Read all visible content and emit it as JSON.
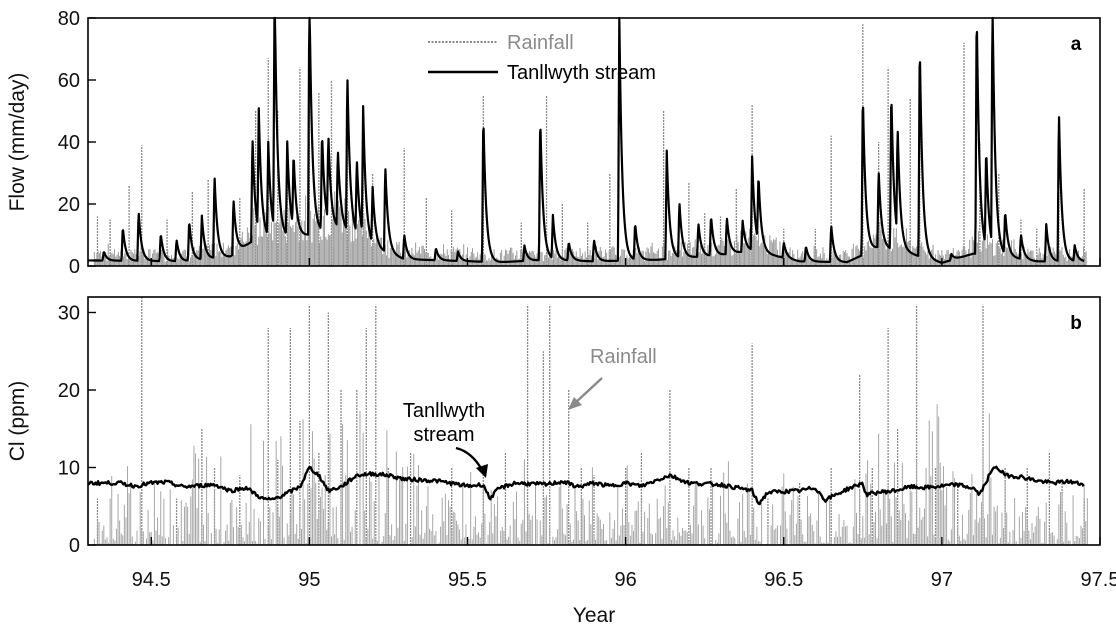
{
  "chart_data": [
    {
      "panel": "a",
      "type": "line",
      "xlabel": "",
      "ylabel": "Flow (mm/day)",
      "xlim": [
        94.3,
        97.5
      ],
      "ylim": [
        0,
        80
      ],
      "yticks": [
        "0",
        "20",
        "40",
        "60",
        "80"
      ],
      "legend_position": "top-center",
      "legend": [
        {
          "label": "Rainfall",
          "color": "#8a8a8a"
        },
        {
          "label": "Tanllwyth stream",
          "color": "#000000"
        }
      ],
      "series": [
        {
          "name": "Rainfall",
          "style": "vertical bars",
          "color": "#8a8a8a",
          "peaks": [
            [
              94.33,
              16
            ],
            [
              94.37,
              15
            ],
            [
              94.43,
              26
            ],
            [
              94.47,
              39
            ],
            [
              94.55,
              15
            ],
            [
              94.63,
              24
            ],
            [
              94.68,
              28
            ],
            [
              94.78,
              22
            ],
            [
              94.83,
              50
            ],
            [
              94.87,
              67
            ],
            [
              94.9,
              50
            ],
            [
              94.93,
              32
            ],
            [
              94.97,
              64
            ],
            [
              95.0,
              68
            ],
            [
              95.03,
              56
            ],
            [
              95.07,
              60
            ],
            [
              95.12,
              50
            ],
            [
              95.17,
              35
            ],
            [
              95.2,
              30
            ],
            [
              95.3,
              38
            ],
            [
              95.37,
              22
            ],
            [
              95.45,
              18
            ],
            [
              95.55,
              55
            ],
            [
              95.67,
              14
            ],
            [
              95.75,
              55
            ],
            [
              95.8,
              20
            ],
            [
              95.88,
              14
            ],
            [
              95.95,
              30
            ],
            [
              96.12,
              50
            ],
            [
              96.2,
              27
            ],
            [
              96.25,
              17
            ],
            [
              96.3,
              16
            ],
            [
              96.35,
              25
            ],
            [
              96.4,
              52
            ],
            [
              96.5,
              12
            ],
            [
              96.6,
              12
            ],
            [
              96.65,
              42
            ],
            [
              96.75,
              78
            ],
            [
              96.8,
              40
            ],
            [
              96.83,
              64
            ],
            [
              96.9,
              54
            ],
            [
              96.93,
              57
            ],
            [
              97.07,
              72
            ],
            [
              97.12,
              40
            ],
            [
              97.18,
              30
            ],
            [
              97.25,
              15
            ],
            [
              97.3,
              12
            ],
            [
              97.37,
              34
            ],
            [
              97.45,
              25
            ]
          ]
        },
        {
          "name": "Tanllwyth stream",
          "style": "line",
          "color": "#000000",
          "baseflow": [
            [
              94.3,
              1.8
            ],
            [
              94.6,
              1.5
            ],
            [
              94.75,
              3
            ],
            [
              94.82,
              8
            ],
            [
              95.0,
              10
            ],
            [
              95.1,
              12
            ],
            [
              95.2,
              6
            ],
            [
              95.3,
              2.2
            ],
            [
              95.6,
              1.2
            ],
            [
              95.75,
              2
            ],
            [
              95.9,
              1.5
            ],
            [
              96.1,
              2
            ],
            [
              96.3,
              3.5
            ],
            [
              96.4,
              5
            ],
            [
              96.55,
              1.5
            ],
            [
              96.7,
              1.2
            ],
            [
              96.8,
              6
            ],
            [
              96.9,
              4
            ],
            [
              97.0,
              1
            ],
            [
              97.1,
              4
            ],
            [
              97.2,
              3
            ],
            [
              97.3,
              1.5
            ],
            [
              97.45,
              1.5
            ]
          ],
          "peaks": [
            [
              94.35,
              3
            ],
            [
              94.41,
              11
            ],
            [
              94.46,
              16
            ],
            [
              94.53,
              9
            ],
            [
              94.58,
              7
            ],
            [
              94.62,
              13
            ],
            [
              94.66,
              14
            ],
            [
              94.7,
              27
            ],
            [
              94.76,
              18
            ],
            [
              94.82,
              34
            ],
            [
              94.84,
              39
            ],
            [
              94.87,
              30
            ],
            [
              94.89,
              80
            ],
            [
              94.93,
              30
            ],
            [
              94.95,
              24
            ],
            [
              95.0,
              80
            ],
            [
              95.04,
              32
            ],
            [
              95.06,
              28
            ],
            [
              95.09,
              25
            ],
            [
              95.12,
              51
            ],
            [
              95.15,
              24
            ],
            [
              95.17,
              41
            ],
            [
              95.2,
              18
            ],
            [
              95.24,
              28
            ],
            [
              95.3,
              8
            ],
            [
              95.4,
              4
            ],
            [
              95.47,
              3
            ],
            [
              95.55,
              48
            ],
            [
              95.68,
              5
            ],
            [
              95.73,
              47
            ],
            [
              95.77,
              14
            ],
            [
              95.82,
              6
            ],
            [
              95.9,
              7
            ],
            [
              95.98,
              80
            ],
            [
              96.03,
              12
            ],
            [
              96.13,
              35
            ],
            [
              96.17,
              18
            ],
            [
              96.23,
              11
            ],
            [
              96.27,
              13
            ],
            [
              96.32,
              12
            ],
            [
              96.37,
              10
            ],
            [
              96.4,
              30
            ],
            [
              96.42,
              22
            ],
            [
              96.5,
              5
            ],
            [
              96.57,
              5
            ],
            [
              96.65,
              12
            ],
            [
              96.75,
              53
            ],
            [
              96.8,
              25
            ],
            [
              96.84,
              52
            ],
            [
              96.86,
              35
            ],
            [
              96.93,
              70
            ],
            [
              97.03,
              2
            ],
            [
              97.11,
              80
            ],
            [
              97.14,
              32
            ],
            [
              97.16,
              80
            ],
            [
              97.2,
              14
            ],
            [
              97.25,
              8
            ],
            [
              97.33,
              12
            ],
            [
              97.37,
              49
            ],
            [
              97.42,
              5
            ]
          ]
        }
      ]
    },
    {
      "panel": "b",
      "type": "line",
      "xlabel": "Year",
      "ylabel": "Cl (ppm)",
      "xlim": [
        94.3,
        97.5
      ],
      "ylim": [
        0,
        32
      ],
      "xticks": [
        "94.5",
        "95",
        "95.5",
        "96",
        "96.5",
        "97",
        "97.5"
      ],
      "yticks": [
        "0",
        "10",
        "20",
        "30"
      ],
      "series": [
        {
          "name": "Rainfall",
          "style": "vertical bars",
          "color": "#8a8a8a",
          "peaks": [
            [
              94.33,
              6
            ],
            [
              94.47,
              32
            ],
            [
              94.58,
              6
            ],
            [
              94.66,
              15
            ],
            [
              94.7,
              10
            ],
            [
              94.78,
              9
            ],
            [
              94.87,
              28
            ],
            [
              94.9,
              11
            ],
            [
              94.94,
              28
            ],
            [
              94.97,
              16
            ],
            [
              95.0,
              31
            ],
            [
              95.03,
              12
            ],
            [
              95.06,
              30
            ],
            [
              95.1,
              20
            ],
            [
              95.15,
              20
            ],
            [
              95.18,
              28
            ],
            [
              95.21,
              31
            ],
            [
              95.25,
              10
            ],
            [
              95.32,
              12
            ],
            [
              95.45,
              10
            ],
            [
              95.55,
              10
            ],
            [
              95.62,
              12
            ],
            [
              95.69,
              31
            ],
            [
              95.74,
              25
            ],
            [
              95.76,
              31
            ],
            [
              95.82,
              20
            ],
            [
              95.86,
              10
            ],
            [
              95.9,
              9
            ],
            [
              96.0,
              10
            ],
            [
              96.05,
              12
            ],
            [
              96.14,
              20
            ],
            [
              96.2,
              10
            ],
            [
              96.27,
              10
            ],
            [
              96.4,
              26
            ],
            [
              96.45,
              6
            ],
            [
              96.55,
              8
            ],
            [
              96.65,
              10
            ],
            [
              96.74,
              22
            ],
            [
              96.78,
              10
            ],
            [
              96.83,
              28
            ],
            [
              96.86,
              15
            ],
            [
              96.92,
              31
            ],
            [
              96.98,
              10
            ],
            [
              97.05,
              8
            ],
            [
              97.13,
              31
            ],
            [
              97.2,
              10
            ],
            [
              97.27,
              10
            ],
            [
              97.34,
              12
            ],
            [
              97.38,
              8
            ],
            [
              97.45,
              6
            ]
          ]
        },
        {
          "name": "Tanllwyth stream",
          "style": "line",
          "color": "#000000",
          "points": [
            [
              94.3,
              8
            ],
            [
              94.4,
              8
            ],
            [
              94.45,
              7.6
            ],
            [
              94.5,
              8
            ],
            [
              94.55,
              8.1
            ],
            [
              94.6,
              7.5
            ],
            [
              94.7,
              7.8
            ],
            [
              94.75,
              7
            ],
            [
              94.8,
              7.4
            ],
            [
              94.85,
              6
            ],
            [
              94.88,
              5.8
            ],
            [
              94.92,
              6.5
            ],
            [
              94.97,
              7.5
            ],
            [
              95.0,
              10
            ],
            [
              95.03,
              9
            ],
            [
              95.06,
              7
            ],
            [
              95.1,
              7.5
            ],
            [
              95.15,
              9
            ],
            [
              95.2,
              9.2
            ],
            [
              95.25,
              9
            ],
            [
              95.3,
              8.5
            ],
            [
              95.4,
              8.3
            ],
            [
              95.5,
              7.6
            ],
            [
              95.55,
              7.8
            ],
            [
              95.57,
              6
            ],
            [
              95.6,
              7.3
            ],
            [
              95.65,
              8
            ],
            [
              95.75,
              7.8
            ],
            [
              95.8,
              8.2
            ],
            [
              95.85,
              7.5
            ],
            [
              95.9,
              8
            ],
            [
              95.95,
              7.6
            ],
            [
              96.0,
              8
            ],
            [
              96.05,
              7.6
            ],
            [
              96.1,
              8.4
            ],
            [
              96.14,
              9
            ],
            [
              96.2,
              8
            ],
            [
              96.3,
              7.8
            ],
            [
              96.35,
              7.4
            ],
            [
              96.4,
              7
            ],
            [
              96.42,
              5.3
            ],
            [
              96.45,
              6.8
            ],
            [
              96.55,
              7
            ],
            [
              96.6,
              7.4
            ],
            [
              96.63,
              5.8
            ],
            [
              96.7,
              7.2
            ],
            [
              96.75,
              8
            ],
            [
              96.76,
              6.5
            ],
            [
              96.8,
              6.8
            ],
            [
              96.85,
              7
            ],
            [
              96.9,
              7.5
            ],
            [
              96.95,
              7.4
            ],
            [
              97.0,
              7.6
            ],
            [
              97.05,
              7.8
            ],
            [
              97.1,
              7.3
            ],
            [
              97.12,
              6.5
            ],
            [
              97.15,
              9
            ],
            [
              97.17,
              10.2
            ],
            [
              97.2,
              9
            ],
            [
              97.25,
              8.8
            ],
            [
              97.3,
              8.3
            ],
            [
              97.35,
              8
            ],
            [
              97.4,
              8.2
            ],
            [
              97.45,
              7.8
            ]
          ]
        }
      ],
      "annotations": [
        {
          "text": "Rainfall",
          "color": "#8a8a8a",
          "points_to": [
            95.82,
            17.5
          ]
        },
        {
          "text": "Tanllwyth stream",
          "lines": [
            "Tanllwyth",
            "stream"
          ],
          "color": "#000000",
          "points_to": [
            95.58,
            9
          ]
        }
      ]
    }
  ]
}
